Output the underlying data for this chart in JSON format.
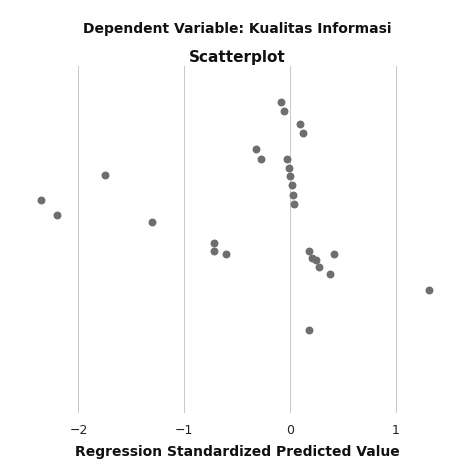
{
  "title": "Scatterplot",
  "subtitle": "Dependent Variable: Kualitas Informasi",
  "xlabel": "Regression Standardized Predicted Value",
  "xlim": [
    -2.6,
    1.6
  ],
  "ylim": [
    -2.8,
    2.0
  ],
  "xticks": [
    -2,
    -1,
    0,
    1
  ],
  "background_color": "#ffffff",
  "grid_color": "#c8c8c8",
  "dot_color": "#6e6e6e",
  "dot_size": 22,
  "points_x": [
    -2.35,
    -2.2,
    -1.75,
    -1.3,
    -0.72,
    -0.72,
    -0.6,
    -0.32,
    -0.27,
    -0.08,
    -0.06,
    -0.03,
    -0.01,
    0.0,
    0.02,
    0.03,
    0.04,
    0.1,
    0.12,
    0.18,
    0.21,
    0.25,
    0.28,
    0.38,
    0.42,
    0.18,
    1.32
  ],
  "points_y": [
    0.15,
    -0.05,
    0.5,
    -0.15,
    -0.45,
    -0.55,
    -0.6,
    0.85,
    0.72,
    1.5,
    1.38,
    0.72,
    0.6,
    0.48,
    0.36,
    0.22,
    0.1,
    1.2,
    1.08,
    -0.55,
    -0.65,
    -0.68,
    -0.78,
    -0.88,
    -0.6,
    -1.65,
    -1.1
  ],
  "title_fontsize": 11,
  "subtitle_fontsize": 10,
  "xlabel_fontsize": 10,
  "tick_labelsize": 9
}
